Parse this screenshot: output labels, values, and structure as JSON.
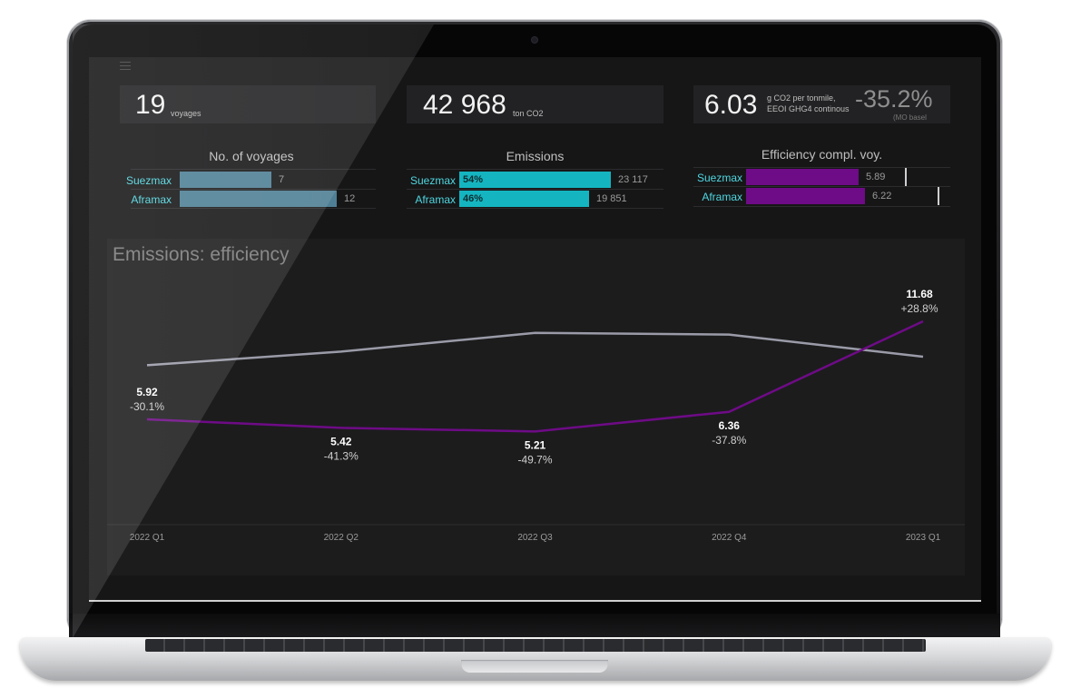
{
  "menu_icon": "hamburger-menu-icon",
  "kpis": {
    "voyages": {
      "value": "19",
      "unit": "voyages"
    },
    "emissions": {
      "value": "42 968",
      "unit": "ton CO2"
    },
    "efficiency": {
      "value": "6.03",
      "unit_line1": "g CO2 per tonmile,",
      "unit_line2": "EEOI GHG4 continous",
      "change": "-35.2%",
      "sub": "(MO basel"
    }
  },
  "panels": {
    "voyages": {
      "title": "No. of voyages",
      "rows": [
        {
          "label": "Suezmax",
          "value": 7,
          "text": "7"
        },
        {
          "label": "Aframax",
          "value": 12,
          "text": "12"
        }
      ]
    },
    "emissions": {
      "title": "Emissions",
      "rows": [
        {
          "label": "Suezmax",
          "pct": "54%",
          "value": 23117,
          "text": "23 117"
        },
        {
          "label": "Aframax",
          "pct": "46%",
          "value": 19851,
          "text": "19 851"
        }
      ]
    },
    "efficiency": {
      "title": "Efficiency compl. voy.",
      "rows": [
        {
          "label": "Suezmax",
          "value": 5.89,
          "text": "5.89"
        },
        {
          "label": "Aframax",
          "value": 6.22,
          "text": "6.22"
        }
      ]
    }
  },
  "colors": {
    "voyages_bar": "#4e7f95",
    "emissions_bar": "#14b5c0",
    "efficiency_bar": "#6e0b86",
    "line_purple": "#6e0b86",
    "line_gray": "#9a9ba8",
    "label_cyan": "#4fd6df"
  },
  "chart_data": {
    "type": "line",
    "title": "Emissions: efficiency",
    "categories": [
      "2022 Q1",
      "2022 Q2",
      "2022 Q3",
      "2022 Q4",
      "2023 Q1"
    ],
    "ylim": [
      0,
      16
    ],
    "series": [
      {
        "values": [
          5.92,
          5.42,
          5.21,
          6.36,
          11.68
        ],
        "labels": [
          "5.92",
          "5.42",
          "5.21",
          "6.36",
          "11.68"
        ],
        "changes": [
          "-30.1%",
          "-41.3%",
          "-49.7%",
          "-37.8%",
          "+28.8%"
        ]
      },
      {
        "values": [
          9.1,
          9.9,
          11.0,
          10.9,
          9.6
        ]
      }
    ]
  }
}
